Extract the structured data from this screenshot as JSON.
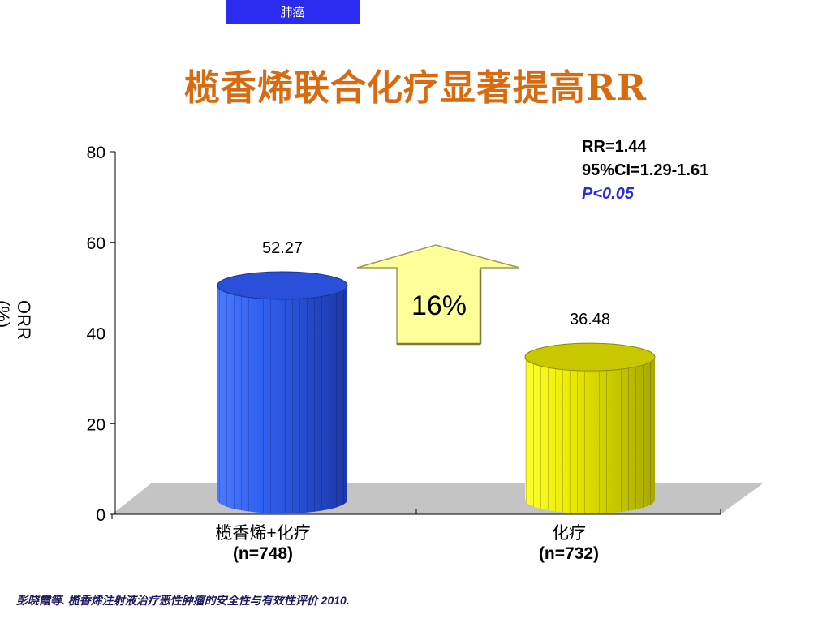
{
  "header": {
    "tag": "肺癌",
    "title": "榄香烯联合化疗显著提高RR"
  },
  "stats": {
    "rr": "RR=1.44",
    "ci": "95%CI=1.29-1.61",
    "p": "P<0.05"
  },
  "arrow_label": "16%",
  "source": "彭晓霞等. 榄香烯注射液治疗恶性肿瘤的安全性与有效性评价 2010.",
  "colors": {
    "blue_bar": "#2d57e6",
    "yellow_bar": "#e0e000",
    "arrow": "#ffff99",
    "title": "#d86a10",
    "p_value": "#2b2bdc"
  },
  "chart_data": {
    "type": "bar",
    "title": "",
    "ylabel": "ORR (%)",
    "ylim": [
      0,
      80
    ],
    "yticks": [
      "0",
      "20",
      "40",
      "60",
      "80"
    ],
    "grid": false,
    "categories": [
      "榄香烯+化疗",
      "化疗"
    ],
    "category_n": [
      "(n=748)",
      "(n=732)"
    ],
    "values": [
      52.27,
      36.48
    ],
    "value_labels": [
      "52.27",
      "36.48"
    ]
  }
}
